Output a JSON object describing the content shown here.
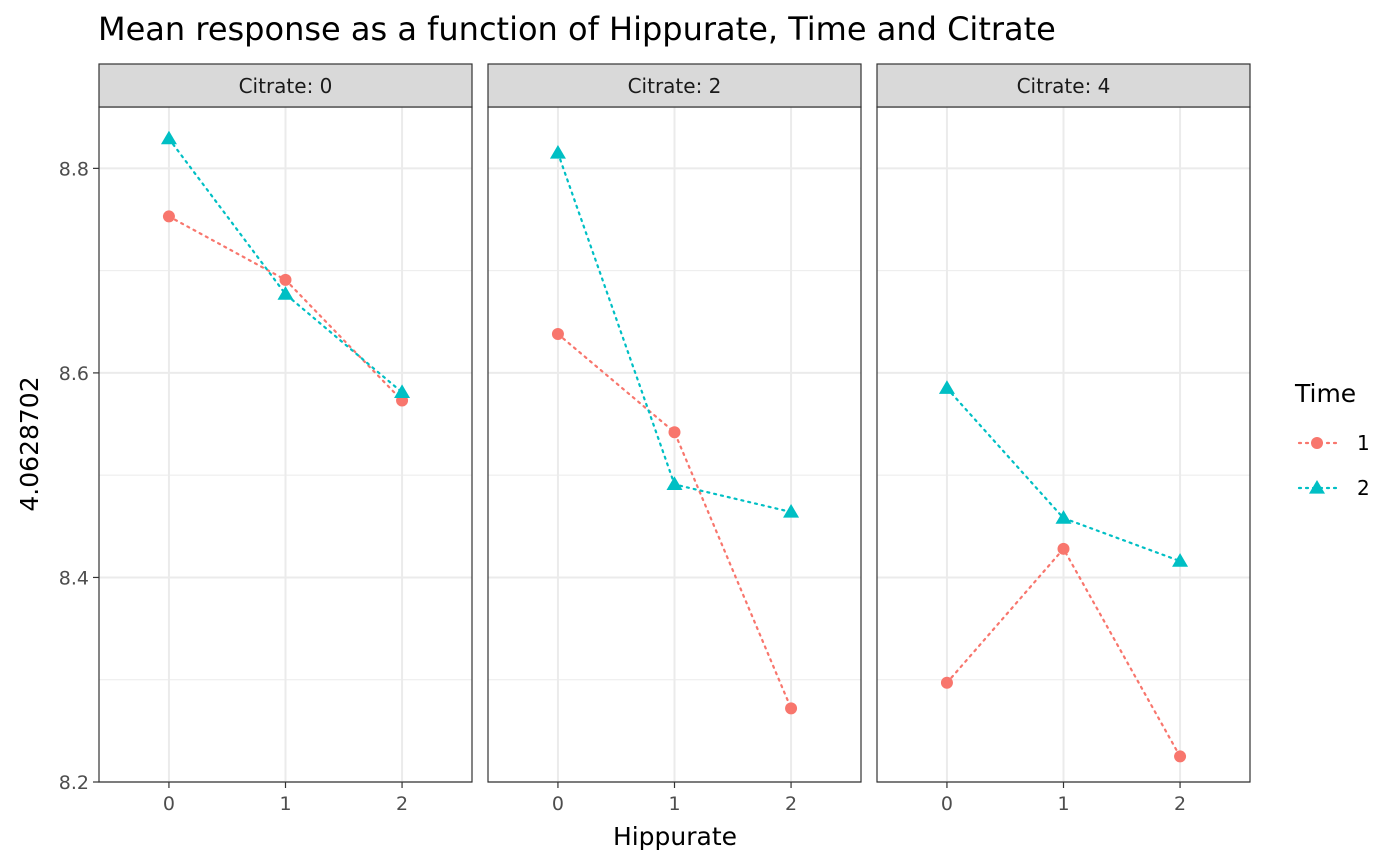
{
  "chart_data": {
    "type": "line",
    "title": "Mean response as a function of Hippurate, Time and Citrate",
    "xlabel": "Hippurate",
    "ylabel": "4.0628702",
    "x_ticks": [
      "0",
      "1",
      "2"
    ],
    "y_ticks": [
      "8.2",
      "8.4",
      "8.6",
      "8.8"
    ],
    "xlim": [
      -0.6,
      2.6
    ],
    "ylim": [
      8.2,
      8.86
    ],
    "grid": true,
    "legend": {
      "title": "Time",
      "placement": "right"
    },
    "series_styles": [
      {
        "name": "1",
        "color": "#F8766D",
        "shape": "circle",
        "linetype": "dotted"
      },
      {
        "name": "2",
        "color": "#00BFC4",
        "shape": "triangle",
        "linetype": "dotted"
      }
    ],
    "facets": [
      {
        "label": "Citrate: 0",
        "x": [
          0,
          1,
          2
        ],
        "series": [
          {
            "name": "1",
            "values": [
              8.753,
              8.691,
              8.573
            ]
          },
          {
            "name": "2",
            "values": [
              8.829,
              8.677,
              8.581
            ]
          }
        ]
      },
      {
        "label": "Citrate: 2",
        "x": [
          0,
          1,
          2
        ],
        "series": [
          {
            "name": "1",
            "values": [
              8.638,
              8.542,
              8.272
            ]
          },
          {
            "name": "2",
            "values": [
              8.815,
              8.491,
              8.464
            ]
          }
        ]
      },
      {
        "label": "Citrate: 4",
        "x": [
          0,
          1,
          2
        ],
        "series": [
          {
            "name": "1",
            "values": [
              8.297,
              8.428,
              8.225
            ]
          },
          {
            "name": "2",
            "values": [
              8.585,
              8.458,
              8.416
            ]
          }
        ]
      }
    ]
  }
}
